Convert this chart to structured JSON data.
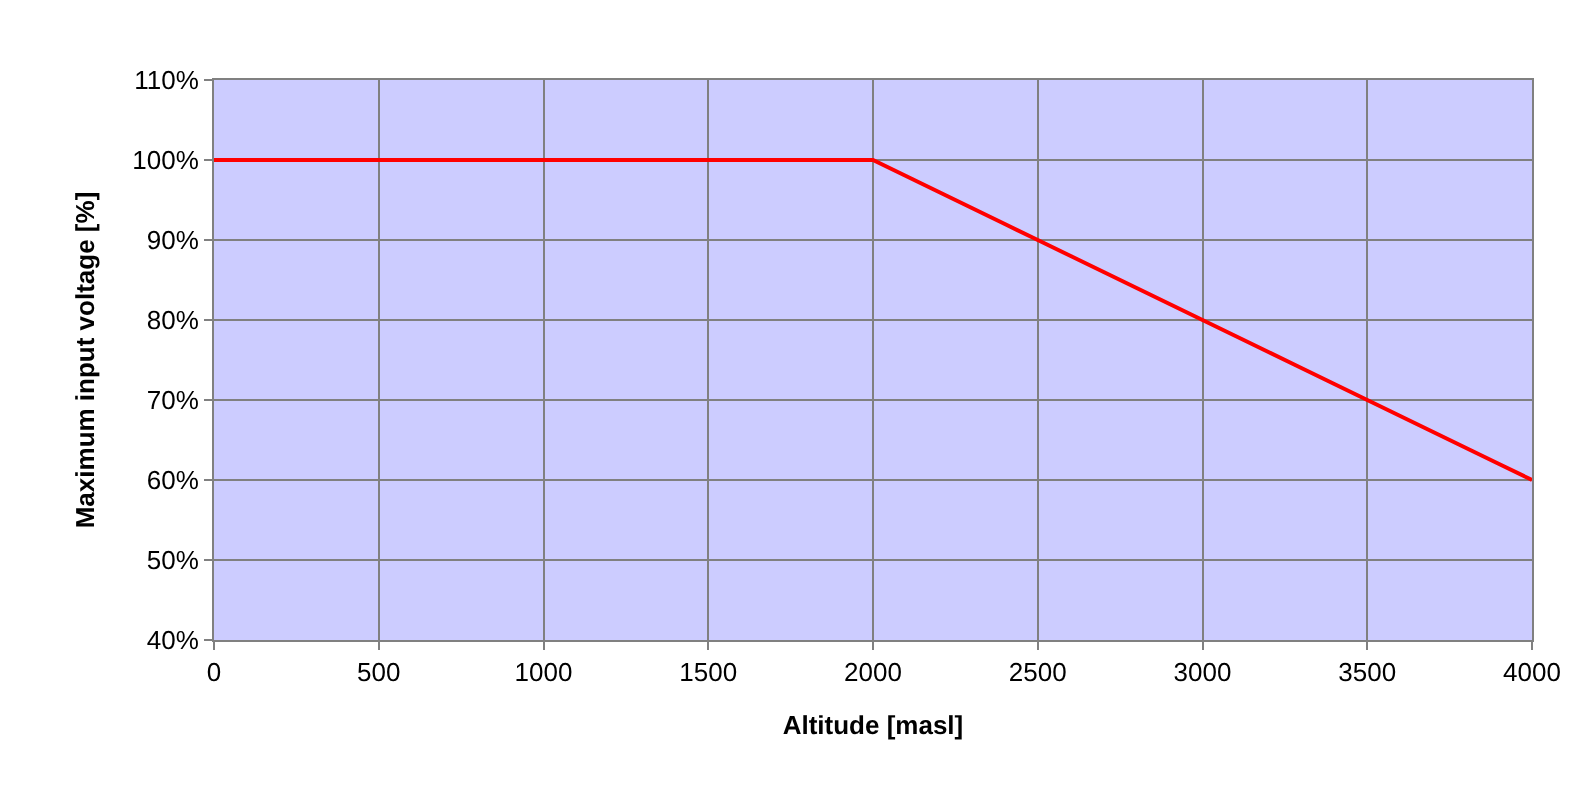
{
  "chart_data": {
    "type": "line",
    "xlabel": "Altitude [masl]",
    "ylabel": "Maximum input voltage [%]",
    "x": [
      0,
      500,
      1000,
      1500,
      2000,
      2100,
      2200,
      2300,
      2400,
      2500,
      2600,
      2700,
      2800,
      2900,
      3000,
      3100,
      3200,
      3300,
      3400,
      3500,
      3600,
      3700,
      3800,
      3900,
      4000
    ],
    "series": [
      {
        "color": "#ff0000",
        "values": [
          100,
          100,
          100,
          100,
          100,
          98,
          96,
          94,
          92,
          90,
          88,
          86,
          84,
          82,
          80,
          78,
          76,
          74,
          72,
          70,
          68,
          66,
          64,
          62,
          60
        ]
      }
    ],
    "xlim": [
      0,
      4000
    ],
    "xticks": [
      0,
      500,
      1000,
      1500,
      2000,
      2500,
      3000,
      3500,
      4000
    ],
    "ylim": [
      40,
      110
    ],
    "yticks": [
      {
        "value": 40,
        "label": "40%"
      },
      {
        "value": 50,
        "label": "50%"
      },
      {
        "value": 60,
        "label": "60%"
      },
      {
        "value": 70,
        "label": "70%"
      },
      {
        "value": 80,
        "label": "80%"
      },
      {
        "value": 90,
        "label": "90%"
      },
      {
        "value": 100,
        "label": "100%"
      },
      {
        "value": 110,
        "label": "110%"
      }
    ],
    "grid": true,
    "marker": "none",
    "line_style": "solid"
  }
}
